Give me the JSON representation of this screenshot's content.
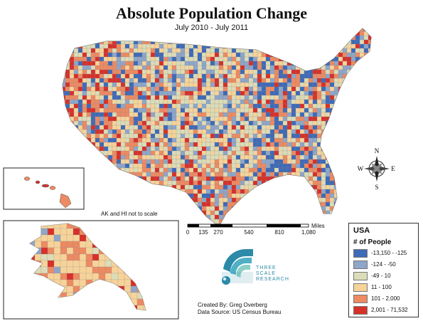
{
  "title": "Absolute Population Change",
  "subtitle": "July 2010 - July 2011",
  "inset_note": "AK and HI not to scale",
  "compass": {
    "north": "N",
    "south": "S",
    "east": "E",
    "west": "W"
  },
  "scale_bar": {
    "unit": "Miles",
    "ticks": [
      "0",
      "135",
      "270",
      "540",
      "810",
      "1,080"
    ]
  },
  "legend": {
    "title": "USA",
    "subtitle": "# of People",
    "classes": [
      {
        "label": "-13,150 - -125",
        "color": "#3e6ab8"
      },
      {
        "label": "-124 - -50",
        "color": "#8ea6c8"
      },
      {
        "label": "-49 - 10",
        "color": "#dcdcb8"
      },
      {
        "label": "11 - 100",
        "color": "#f7d39a"
      },
      {
        "label": "101 - 2,000",
        "color": "#ec8a62"
      },
      {
        "label": "2,001 - 71,532",
        "color": "#d7302a"
      }
    ]
  },
  "brand": {
    "line1": "THREE",
    "line2": "SCALE",
    "line3": "RESEARCH"
  },
  "credits": {
    "created_by": "Created By: Greg Overberg",
    "source": "Data Source: US Census Bureau"
  }
}
